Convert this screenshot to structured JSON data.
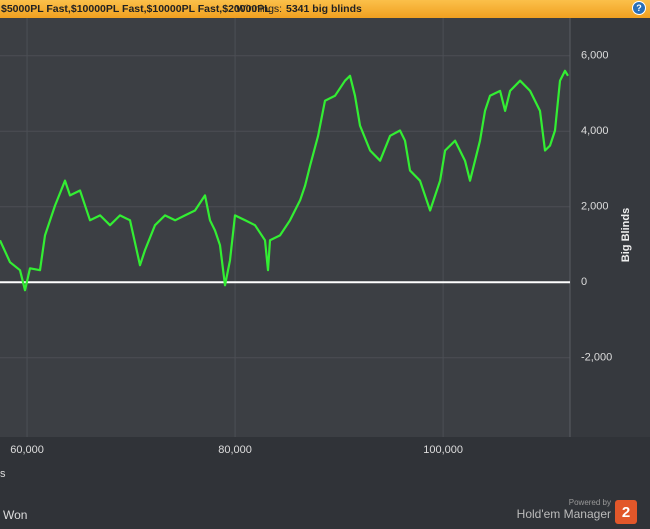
{
  "chart_data": {
    "type": "line",
    "title": "$5000PL Fast,$10000PL Fast,$10000PL Fast,$20000PL",
    "winnings_label": "Winnings:",
    "winnings_value": "5341 big blinds",
    "help": "?",
    "x_label": "s",
    "y_label": "Big Blinds",
    "powered_by": "Powered by",
    "brand": "Hold'em Manager",
    "brand_badge": "2",
    "x": [
      57400,
      58360,
      59320,
      59800,
      60280,
      61250,
      61730,
      62690,
      63650,
      64130,
      65090,
      66050,
      67020,
      67980,
      68940,
      69900,
      70860,
      71340,
      72300,
      73260,
      74230,
      75190,
      76150,
      77110,
      77590,
      78070,
      78550,
      79030,
      79510,
      79990,
      80960,
      81920,
      82880,
      83170,
      83360,
      84320,
      85280,
      86250,
      86730,
      87210,
      87980,
      88650,
      89610,
      90570,
      91050,
      91530,
      92010,
      92980,
      93940,
      94900,
      95860,
      96340,
      96820,
      97780,
      98750,
      99710,
      100190,
      101150,
      102110,
      102590,
      103550,
      104030,
      104510,
      105480,
      105960,
      106440,
      107400,
      108360,
      109320,
      109800,
      110280,
      110760,
      111240,
      111720,
      112010
    ],
    "series": [
      {
        "name": "Won",
        "color": "#33ee33",
        "values": [
          1110,
          530,
          320,
          -210,
          370,
          320,
          1240,
          2030,
          2690,
          2300,
          2430,
          1640,
          1770,
          1510,
          1770,
          1640,
          450,
          850,
          1510,
          1770,
          1640,
          1770,
          1900,
          2300,
          1640,
          1370,
          980,
          -80,
          580,
          1770,
          1640,
          1510,
          1110,
          320,
          1110,
          1240,
          1640,
          2170,
          2560,
          3090,
          3880,
          4810,
          4940,
          5340,
          5470,
          4940,
          4150,
          3490,
          3220,
          3880,
          4020,
          3750,
          2960,
          2690,
          1900,
          2690,
          3490,
          3750,
          3220,
          2690,
          3750,
          4540,
          4940,
          5070,
          4540,
          5070,
          5340,
          5070,
          4540,
          3490,
          3620,
          4020,
          5340,
          5600,
          5470
        ]
      }
    ],
    "xlim": [
      57400,
      112200
    ],
    "ylim": [
      -4100,
      7000
    ],
    "xticks": [
      {
        "value": 60000,
        "label": "60,000"
      },
      {
        "value": 80000,
        "label": "80,000"
      },
      {
        "value": 100000,
        "label": "100,000"
      }
    ],
    "yticks": [
      {
        "value": -2000,
        "label": "-2,000"
      },
      0,
      {
        "value": 2000,
        "label": "2,000"
      },
      {
        "value": 4000,
        "label": "4,000"
      },
      {
        "value": 6000,
        "label": "6,000"
      }
    ],
    "grid": true,
    "reference_line": 0
  }
}
